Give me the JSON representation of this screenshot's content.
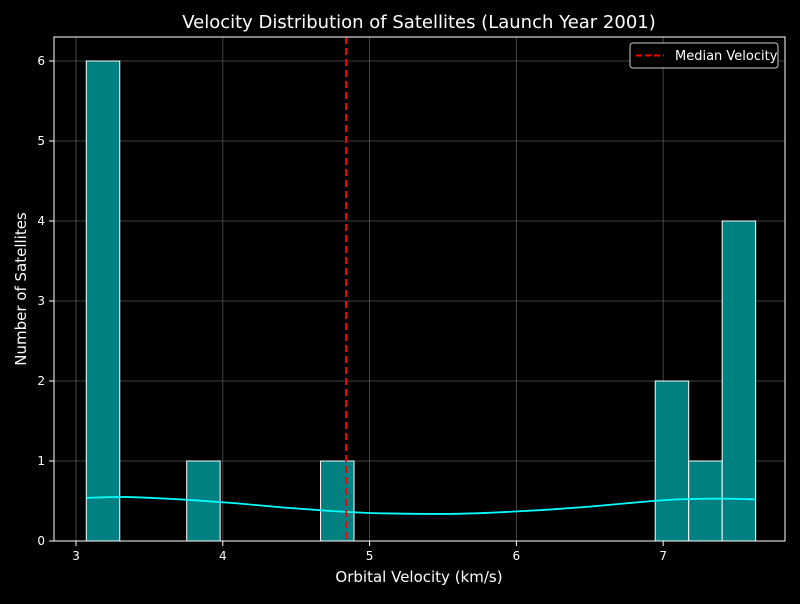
{
  "chart_data": {
    "type": "histogram",
    "title": "Velocity Distribution of Satellites (Launch Year 2001)",
    "xlabel": "Orbital Velocity (km/s)",
    "ylabel": "Number of Satellites",
    "xlim": [
      2.85,
      7.83
    ],
    "ylim": [
      0,
      6.3
    ],
    "xticks": [
      3,
      4,
      5,
      6,
      7
    ],
    "yticks": [
      0,
      1,
      2,
      3,
      4,
      5,
      6
    ],
    "grid": true,
    "legend_position": "top-right",
    "bin_width": 0.228,
    "bins": [
      {
        "x0": 3.07,
        "x1": 3.298,
        "count": 6
      },
      {
        "x0": 3.754,
        "x1": 3.982,
        "count": 1
      },
      {
        "x0": 4.666,
        "x1": 4.894,
        "count": 1
      },
      {
        "x0": 6.946,
        "x1": 7.174,
        "count": 2
      },
      {
        "x0": 7.174,
        "x1": 7.402,
        "count": 1
      },
      {
        "x0": 7.402,
        "x1": 7.63,
        "count": 4
      }
    ],
    "kde": {
      "x": [
        3.07,
        3.3,
        3.5,
        3.8,
        4.1,
        4.4,
        4.7,
        5.0,
        5.3,
        5.6,
        5.9,
        6.2,
        6.5,
        6.8,
        7.1,
        7.4,
        7.63
      ],
      "y": [
        0.54,
        0.55,
        0.54,
        0.51,
        0.47,
        0.42,
        0.38,
        0.35,
        0.34,
        0.34,
        0.36,
        0.39,
        0.43,
        0.48,
        0.52,
        0.53,
        0.52
      ]
    },
    "median": {
      "value": 4.84,
      "label": "Median Velocity"
    },
    "colors": {
      "background": "#000000",
      "bar_fill": "#008080",
      "bar_edge": "#ffffff",
      "kde_line": "#00ffff",
      "median_line": "#ff0000",
      "grid": "#555555",
      "text": "#ffffff"
    }
  }
}
